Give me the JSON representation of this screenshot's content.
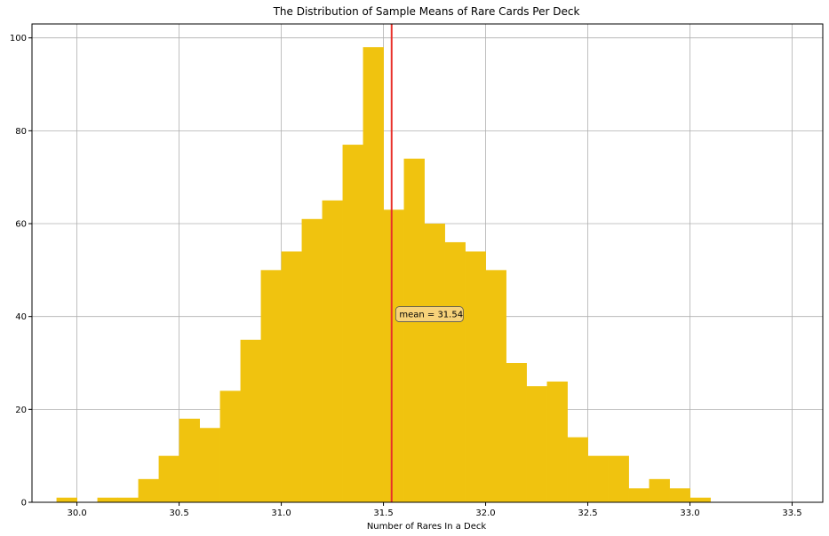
{
  "chart_data": {
    "type": "bar",
    "title": "The Distribution of Sample Means of Rare Cards Per Deck",
    "xlabel": "Number of Rares In a Deck",
    "ylabel": "",
    "xlim": [
      29.78,
      33.65
    ],
    "ylim": [
      0,
      103
    ],
    "grid": true,
    "xticks": [
      "30.0",
      "30.5",
      "31.0",
      "31.5",
      "32.0",
      "32.5",
      "33.0",
      "33.5"
    ],
    "yticks": [
      "0",
      "20",
      "40",
      "60",
      "80",
      "100"
    ],
    "bar_color": "#f0c30f",
    "bin_width": 0.1,
    "bins": [
      {
        "x0": 29.9,
        "value": 1
      },
      {
        "x0": 30.0,
        "value": 0
      },
      {
        "x0": 30.1,
        "value": 1
      },
      {
        "x0": 30.2,
        "value": 1
      },
      {
        "x0": 30.3,
        "value": 5
      },
      {
        "x0": 30.4,
        "value": 10
      },
      {
        "x0": 30.5,
        "value": 18
      },
      {
        "x0": 30.6,
        "value": 16
      },
      {
        "x0": 30.7,
        "value": 24
      },
      {
        "x0": 30.8,
        "value": 35
      },
      {
        "x0": 30.9,
        "value": 50
      },
      {
        "x0": 31.0,
        "value": 54
      },
      {
        "x0": 31.1,
        "value": 61
      },
      {
        "x0": 31.2,
        "value": 65
      },
      {
        "x0": 31.3,
        "value": 77
      },
      {
        "x0": 31.4,
        "value": 98
      },
      {
        "x0": 31.5,
        "value": 63
      },
      {
        "x0": 31.6,
        "value": 74
      },
      {
        "x0": 31.7,
        "value": 60
      },
      {
        "x0": 31.8,
        "value": 56
      },
      {
        "x0": 31.9,
        "value": 54
      },
      {
        "x0": 32.0,
        "value": 50
      },
      {
        "x0": 32.1,
        "value": 30
      },
      {
        "x0": 32.2,
        "value": 25
      },
      {
        "x0": 32.3,
        "value": 26
      },
      {
        "x0": 32.4,
        "value": 14
      },
      {
        "x0": 32.5,
        "value": 10
      },
      {
        "x0": 32.6,
        "value": 10
      },
      {
        "x0": 32.7,
        "value": 3
      },
      {
        "x0": 32.8,
        "value": 5
      },
      {
        "x0": 32.9,
        "value": 3
      },
      {
        "x0": 33.0,
        "value": 1
      }
    ],
    "mean_line": {
      "x": 31.54,
      "color": "#e8302a"
    },
    "annotation": {
      "text": "mean = 31.54",
      "x": 31.56,
      "y": 40.5,
      "facecolor": "#f7d27a"
    }
  }
}
